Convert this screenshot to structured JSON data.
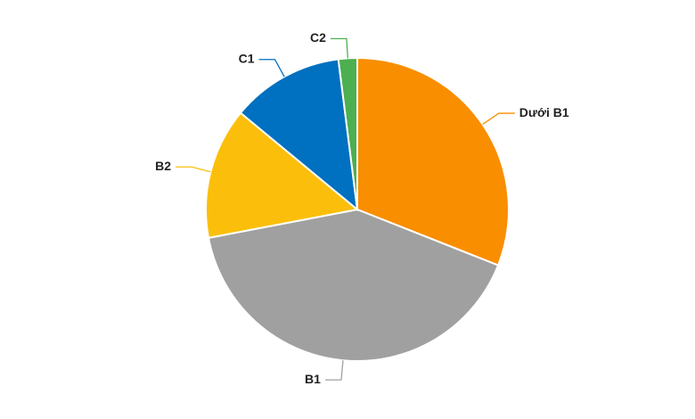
{
  "chart_data": {
    "type": "pie",
    "categories": [
      "Dưới B1",
      "B1",
      "B2",
      "C1",
      "C2"
    ],
    "values": [
      31,
      41,
      14,
      12,
      2
    ],
    "colors": [
      "#f98e00",
      "#a0a0a0",
      "#fbbf0b",
      "#0070c0",
      "#4caf50"
    ]
  }
}
